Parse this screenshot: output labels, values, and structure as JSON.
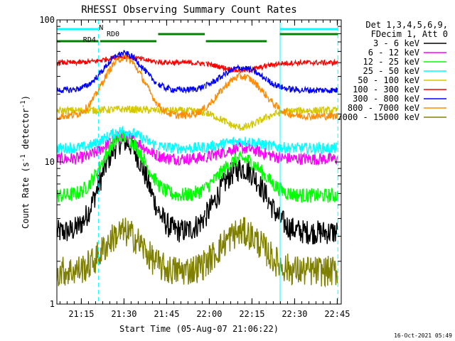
{
  "chart_data": {
    "type": "line",
    "title": "RHESSI Observing Summary Count Rates",
    "xlabel": "Start Time (05-Aug-07 21:06:22)",
    "ylabel_main": "Count Rate (s",
    "ylabel_exp": "-1",
    "ylabel_tail": " detector",
    "ylabel_end": ")",
    "x_range_minutes": [
      0,
      100
    ],
    "ylim": [
      1,
      100
    ],
    "yscale": "log",
    "x_tick_labels": [
      {
        "label": "21:15",
        "minute": 8.6
      },
      {
        "label": "21:30",
        "minute": 23.6
      },
      {
        "label": "21:45",
        "minute": 38.6
      },
      {
        "label": "22:00",
        "minute": 53.6
      },
      {
        "label": "22:15",
        "minute": 68.6
      },
      {
        "label": "22:30",
        "minute": 83.6
      },
      {
        "label": "22:45",
        "minute": 98.6
      }
    ],
    "y_tick_labels": [
      {
        "label": "100",
        "value": 100
      },
      {
        "label": "10",
        "value": 10
      },
      {
        "label": "1",
        "value": 1
      }
    ],
    "legend_header": [
      "Det 1,3,4,5,6,9,",
      "FDecim 1, Att 0"
    ],
    "legend_position": "right",
    "series": [
      {
        "name": "3 - 6 keV",
        "color": "#000000",
        "base": 3.2,
        "peak1": 14.0,
        "peak2": 9.0,
        "noise": 0.2
      },
      {
        "name": "6 - 12 keV",
        "color": "#ff00ff",
        "base": 10.5,
        "peak1": 15.0,
        "peak2": 12.5,
        "noise": 0.1
      },
      {
        "name": "12 - 25 keV",
        "color": "#00ff00",
        "base": 5.8,
        "peak1": 15.0,
        "peak2": 10.5,
        "noise": 0.12
      },
      {
        "name": "25 - 50 keV",
        "color": "#00ffff",
        "base": 12.5,
        "peak1": 16.5,
        "peak2": 14.0,
        "noise": 0.09
      },
      {
        "name": "50 - 100 keV",
        "color": "#d4c800",
        "base": 23.0,
        "peak1": 23.5,
        "peak2": 17.5,
        "noise": 0.06
      },
      {
        "name": "100 - 300 keV",
        "color": "#ff0000",
        "base": 50.0,
        "peak1": 55.0,
        "peak2": 44.0,
        "noise": 0.04
      },
      {
        "name": "300 - 800 keV",
        "color": "#0000ff",
        "base": 32.0,
        "peak1": 58.0,
        "peak2": 46.0,
        "noise": 0.05
      },
      {
        "name": "800 - 7000 keV",
        "color": "#ff8c00",
        "base": 21.0,
        "peak1": 54.0,
        "peak2": 40.0,
        "noise": 0.06
      },
      {
        "name": "7000 - 15000 keV",
        "color": "#808000",
        "base": 1.7,
        "peak1": 3.2,
        "peak2": 3.2,
        "noise": 0.25
      }
    ],
    "saa_gaps_minutes": [
      [
        14.6,
        14.7
      ],
      [
        35.2,
        35.4
      ],
      [
        52.1,
        52.3
      ],
      [
        73.9,
        74.1
      ]
    ],
    "flag_bars": [
      {
        "label": "N",
        "color": "#00ffff",
        "ranges": [
          [
            0,
            14.6
          ],
          [
            78.5,
            98.8
          ]
        ]
      },
      {
        "label": "RD0",
        "color": "#008000",
        "ranges": [
          [
            15.2,
            35.0
          ],
          [
            35.6,
            52.0
          ],
          [
            52.4,
            73.8
          ],
          [
            78.4,
            98.8
          ]
        ]
      },
      {
        "label": "RD4",
        "color": "#008000",
        "ranges": [
          [
            0,
            14.6
          ]
        ]
      }
    ],
    "vlines_solid_minutes": [
      0,
      78.5
    ],
    "vlines_dashed_minutes": [
      14.6,
      98.8
    ]
  },
  "footer": {
    "timestamp": "16-Oct-2021 05:49"
  }
}
